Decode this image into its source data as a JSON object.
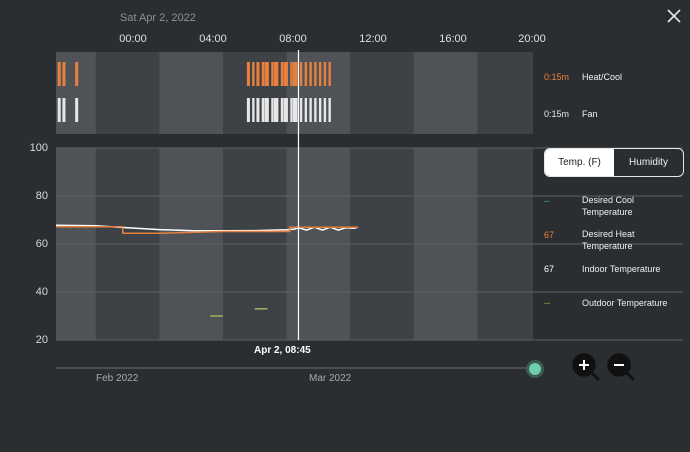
{
  "header": {
    "date": "Sat Apr 2, 2022",
    "hours": [
      "00:00",
      "04:00",
      "08:00",
      "12:00",
      "16:00",
      "20:00"
    ]
  },
  "runtime": [
    {
      "value": "0:15m",
      "label": "Heat/Cool",
      "color": "#e8803d"
    },
    {
      "value": "0:15m",
      "label": "Fan",
      "color": "#e6e6e6"
    }
  ],
  "toggle": {
    "temp_label": "Temp. (F)",
    "humidity_label": "Humidity",
    "selected": "temp"
  },
  "legend": [
    {
      "value": "--",
      "label": "Desired Cool Temperature",
      "color": "#4fb38f"
    },
    {
      "value": "67",
      "label": "Desired Heat Temperature",
      "color": "#e8803d"
    },
    {
      "value": "67",
      "label": "Indoor Temperature",
      "color": "#ffffff"
    },
    {
      "value": "--",
      "label": "Outdoor Temperature",
      "color": "#a3b35a"
    }
  ],
  "timeline": {
    "cursor_label": "Apr 2, 08:45",
    "months": [
      "Feb 2022",
      "Mar 2022"
    ]
  },
  "chart_data": {
    "type": "line",
    "x_unit": "hour of day",
    "xlim": [
      -6.5,
      23.5
    ],
    "ylim": [
      20,
      100
    ],
    "yticks": [
      100,
      80,
      60,
      40,
      20
    ],
    "shaded_bands": [
      [
        -6.5,
        -4
      ],
      [
        0,
        4
      ],
      [
        8,
        12
      ],
      [
        16,
        20
      ]
    ],
    "cursor_x": 8.75,
    "series": [
      {
        "name": "Indoor Temperature",
        "color": "#ffffff",
        "x": [
          -6.5,
          -4,
          -3,
          -2,
          0,
          2,
          4,
          6,
          8,
          8.5,
          8.75,
          9.25,
          9.75,
          10.25,
          10.75,
          11.25,
          11.75,
          12.25,
          12.5
        ],
        "y": [
          67.8,
          67.6,
          67.2,
          66.8,
          66.0,
          65.6,
          65.5,
          65.6,
          65.9,
          66.2,
          66.8,
          65.8,
          67.0,
          65.8,
          67.0,
          65.8,
          66.8,
          66.6,
          67.0
        ]
      },
      {
        "name": "Desired Heat Temperature",
        "color": "#e8803d",
        "x": [
          -6.5,
          -2.3,
          -2.3,
          0,
          4,
          8,
          8.2,
          8.2,
          12.5
        ],
        "y": [
          67.2,
          67.2,
          64.5,
          64.5,
          65.2,
          65.2,
          65.2,
          67.0,
          67.0
        ]
      },
      {
        "name": "Outdoor Temperature",
        "color": "#a3b35a",
        "segments": [
          {
            "x": [
              3.2,
              4.0
            ],
            "y": [
              30,
              30
            ]
          },
          {
            "x": [
              6.0,
              6.8
            ],
            "y": [
              33,
              33
            ]
          }
        ]
      }
    ],
    "runtime_bars": {
      "heat_cool": [
        -6.3,
        -6.0,
        -5.2,
        5.6,
        6.2,
        6.7,
        7.3,
        7.9,
        8.5
      ],
      "fan": [
        -6.3,
        -6.0,
        -5.2,
        5.6,
        6.2,
        6.7,
        7.3,
        7.9,
        8.5
      ]
    }
  }
}
